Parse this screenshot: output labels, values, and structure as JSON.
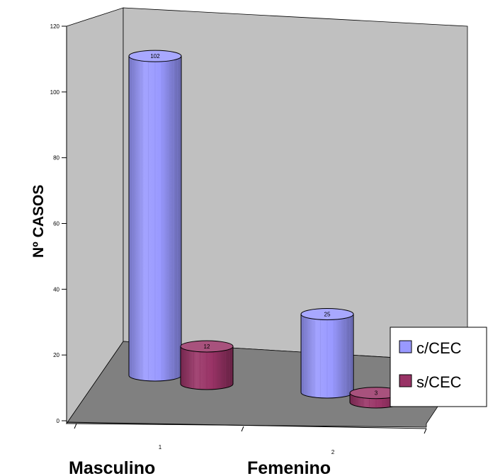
{
  "chart_data": {
    "type": "bar",
    "style": "3d-cylinder",
    "categories": [
      "1",
      "2"
    ],
    "group_labels": [
      "Masculino",
      "Femenino"
    ],
    "series": [
      {
        "name": "c/CEC",
        "values": [
          102,
          25
        ],
        "color": "#9999ff"
      },
      {
        "name": "s/CEC",
        "values": [
          12,
          3
        ],
        "color": "#993366"
      }
    ],
    "ylabel": "Nº CASOS",
    "xlabel": "",
    "ylim": [
      0,
      120
    ],
    "yticks": [
      0,
      20,
      40,
      60,
      80,
      100,
      120
    ],
    "grid": false,
    "legend_position": "right",
    "wall_color": "#c0c0c0",
    "floor_color": "#808080"
  }
}
